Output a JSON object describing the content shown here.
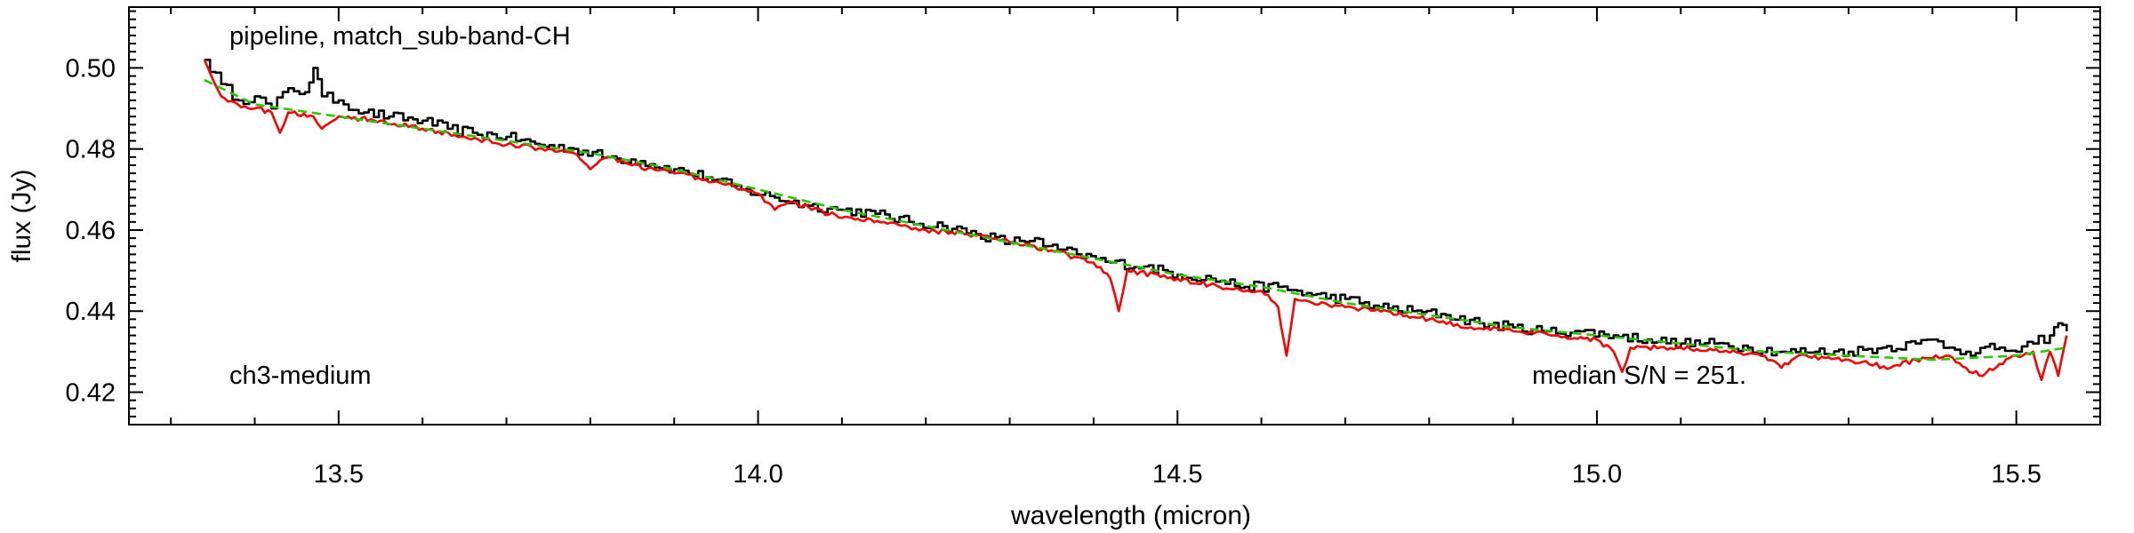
{
  "chart_data": {
    "type": "line",
    "xlabel": "wavelength (micron)",
    "ylabel": "flux (Jy)",
    "xlim": [
      13.25,
      15.6
    ],
    "ylim": [
      0.412,
      0.515
    ],
    "x_ticks": [
      13.5,
      14.0,
      14.5,
      15.0,
      15.5
    ],
    "x_tick_labels": [
      "13.5",
      "14.0",
      "14.5",
      "15.0",
      "15.5"
    ],
    "y_ticks": [
      0.42,
      0.44,
      0.46,
      0.48,
      0.5
    ],
    "y_tick_labels": [
      "0.42",
      "0.44",
      "0.46",
      "0.48",
      "0.50"
    ],
    "x_range": [
      13.34,
      15.56
    ],
    "grid": false,
    "annotations": {
      "top_left": "pipeline, match_sub-band-CH",
      "bottom_left": "ch3-medium",
      "bottom_right": "median S/N = 251."
    },
    "series": [
      {
        "style": "black step",
        "color": "#000000",
        "points": [
          [
            13.34,
            0.502
          ],
          [
            13.36,
            0.496
          ],
          [
            13.38,
            0.492
          ],
          [
            13.4,
            0.493
          ],
          [
            13.42,
            0.49
          ],
          [
            13.44,
            0.495
          ],
          [
            13.46,
            0.494
          ],
          [
            13.47,
            0.5
          ],
          [
            13.48,
            0.493
          ],
          [
            13.5,
            0.492
          ],
          [
            13.53,
            0.489
          ],
          [
            13.56,
            0.488
          ],
          [
            13.6,
            0.487
          ],
          [
            13.63,
            0.485
          ],
          [
            13.66,
            0.484
          ],
          [
            13.7,
            0.483
          ],
          [
            13.74,
            0.481
          ],
          [
            13.78,
            0.48
          ],
          [
            13.82,
            0.478
          ],
          [
            13.86,
            0.477
          ],
          [
            13.9,
            0.475
          ],
          [
            13.94,
            0.473
          ],
          [
            13.98,
            0.47
          ],
          [
            14.02,
            0.468
          ],
          [
            14.06,
            0.466
          ],
          [
            14.1,
            0.465
          ],
          [
            14.14,
            0.464
          ],
          [
            14.18,
            0.462
          ],
          [
            14.22,
            0.461
          ],
          [
            14.26,
            0.459
          ],
          [
            14.3,
            0.457
          ],
          [
            14.33,
            0.458
          ],
          [
            14.34,
            0.456
          ],
          [
            14.38,
            0.454
          ],
          [
            14.42,
            0.452
          ],
          [
            14.46,
            0.451
          ],
          [
            14.5,
            0.449
          ],
          [
            14.54,
            0.448
          ],
          [
            14.58,
            0.446
          ],
          [
            14.62,
            0.446
          ],
          [
            14.66,
            0.444
          ],
          [
            14.7,
            0.443
          ],
          [
            14.74,
            0.441
          ],
          [
            14.78,
            0.44
          ],
          [
            14.82,
            0.439
          ],
          [
            14.86,
            0.437
          ],
          [
            14.9,
            0.436
          ],
          [
            14.94,
            0.435
          ],
          [
            14.98,
            0.435
          ],
          [
            15.02,
            0.434
          ],
          [
            15.06,
            0.433
          ],
          [
            15.1,
            0.432
          ],
          [
            15.14,
            0.432
          ],
          [
            15.18,
            0.431
          ],
          [
            15.22,
            0.43
          ],
          [
            15.26,
            0.43
          ],
          [
            15.3,
            0.43
          ],
          [
            15.34,
            0.431
          ],
          [
            15.38,
            0.432
          ],
          [
            15.4,
            0.433
          ],
          [
            15.42,
            0.431
          ],
          [
            15.44,
            0.43
          ],
          [
            15.48,
            0.431
          ],
          [
            15.5,
            0.43
          ],
          [
            15.52,
            0.432
          ],
          [
            15.54,
            0.434
          ],
          [
            15.55,
            0.437
          ],
          [
            15.56,
            0.435
          ]
        ]
      },
      {
        "style": "red",
        "color": "#ff0000",
        "points": [
          [
            13.34,
            0.502
          ],
          [
            13.36,
            0.493
          ],
          [
            13.38,
            0.491
          ],
          [
            13.4,
            0.49
          ],
          [
            13.42,
            0.489
          ],
          [
            13.43,
            0.484
          ],
          [
            13.44,
            0.489
          ],
          [
            13.47,
            0.488
          ],
          [
            13.48,
            0.485
          ],
          [
            13.5,
            0.488
          ],
          [
            13.55,
            0.487
          ],
          [
            13.6,
            0.485
          ],
          [
            13.65,
            0.483
          ],
          [
            13.7,
            0.481
          ],
          [
            13.75,
            0.48
          ],
          [
            13.78,
            0.479
          ],
          [
            13.8,
            0.475
          ],
          [
            13.82,
            0.478
          ],
          [
            13.85,
            0.476
          ],
          [
            13.9,
            0.474
          ],
          [
            13.95,
            0.472
          ],
          [
            14.0,
            0.469
          ],
          [
            14.02,
            0.465
          ],
          [
            14.04,
            0.467
          ],
          [
            14.1,
            0.463
          ],
          [
            14.15,
            0.462
          ],
          [
            14.2,
            0.46
          ],
          [
            14.25,
            0.459
          ],
          [
            14.3,
            0.457
          ],
          [
            14.35,
            0.455
          ],
          [
            14.4,
            0.452
          ],
          [
            14.42,
            0.448
          ],
          [
            14.43,
            0.44
          ],
          [
            14.44,
            0.45
          ],
          [
            14.5,
            0.448
          ],
          [
            14.55,
            0.446
          ],
          [
            14.6,
            0.445
          ],
          [
            14.62,
            0.441
          ],
          [
            14.63,
            0.429
          ],
          [
            14.64,
            0.443
          ],
          [
            14.7,
            0.441
          ],
          [
            14.75,
            0.44
          ],
          [
            14.8,
            0.438
          ],
          [
            14.85,
            0.436
          ],
          [
            14.9,
            0.435
          ],
          [
            14.95,
            0.434
          ],
          [
            15.0,
            0.433
          ],
          [
            15.02,
            0.43
          ],
          [
            15.03,
            0.425
          ],
          [
            15.04,
            0.431
          ],
          [
            15.1,
            0.431
          ],
          [
            15.15,
            0.43
          ],
          [
            15.2,
            0.429
          ],
          [
            15.22,
            0.426
          ],
          [
            15.24,
            0.429
          ],
          [
            15.3,
            0.428
          ],
          [
            15.35,
            0.426
          ],
          [
            15.38,
            0.428
          ],
          [
            15.42,
            0.429
          ],
          [
            15.44,
            0.426
          ],
          [
            15.46,
            0.424
          ],
          [
            15.48,
            0.427
          ],
          [
            15.5,
            0.429
          ],
          [
            15.52,
            0.43
          ],
          [
            15.53,
            0.423
          ],
          [
            15.54,
            0.43
          ],
          [
            15.55,
            0.424
          ],
          [
            15.56,
            0.434
          ]
        ]
      },
      {
        "style": "green dashed",
        "color": "#22cc00",
        "points": [
          [
            13.34,
            0.497
          ],
          [
            13.4,
            0.491
          ],
          [
            13.5,
            0.488
          ],
          [
            13.6,
            0.485
          ],
          [
            13.7,
            0.482
          ],
          [
            13.8,
            0.479
          ],
          [
            13.9,
            0.475
          ],
          [
            14.0,
            0.47
          ],
          [
            14.1,
            0.465
          ],
          [
            14.2,
            0.461
          ],
          [
            14.3,
            0.457
          ],
          [
            14.4,
            0.453
          ],
          [
            14.5,
            0.449
          ],
          [
            14.6,
            0.446
          ],
          [
            14.7,
            0.442
          ],
          [
            14.8,
            0.439
          ],
          [
            14.9,
            0.436
          ],
          [
            15.0,
            0.434
          ],
          [
            15.1,
            0.432
          ],
          [
            15.2,
            0.43
          ],
          [
            15.3,
            0.429
          ],
          [
            15.4,
            0.428
          ],
          [
            15.5,
            0.429
          ],
          [
            15.56,
            0.431
          ]
        ]
      }
    ]
  }
}
